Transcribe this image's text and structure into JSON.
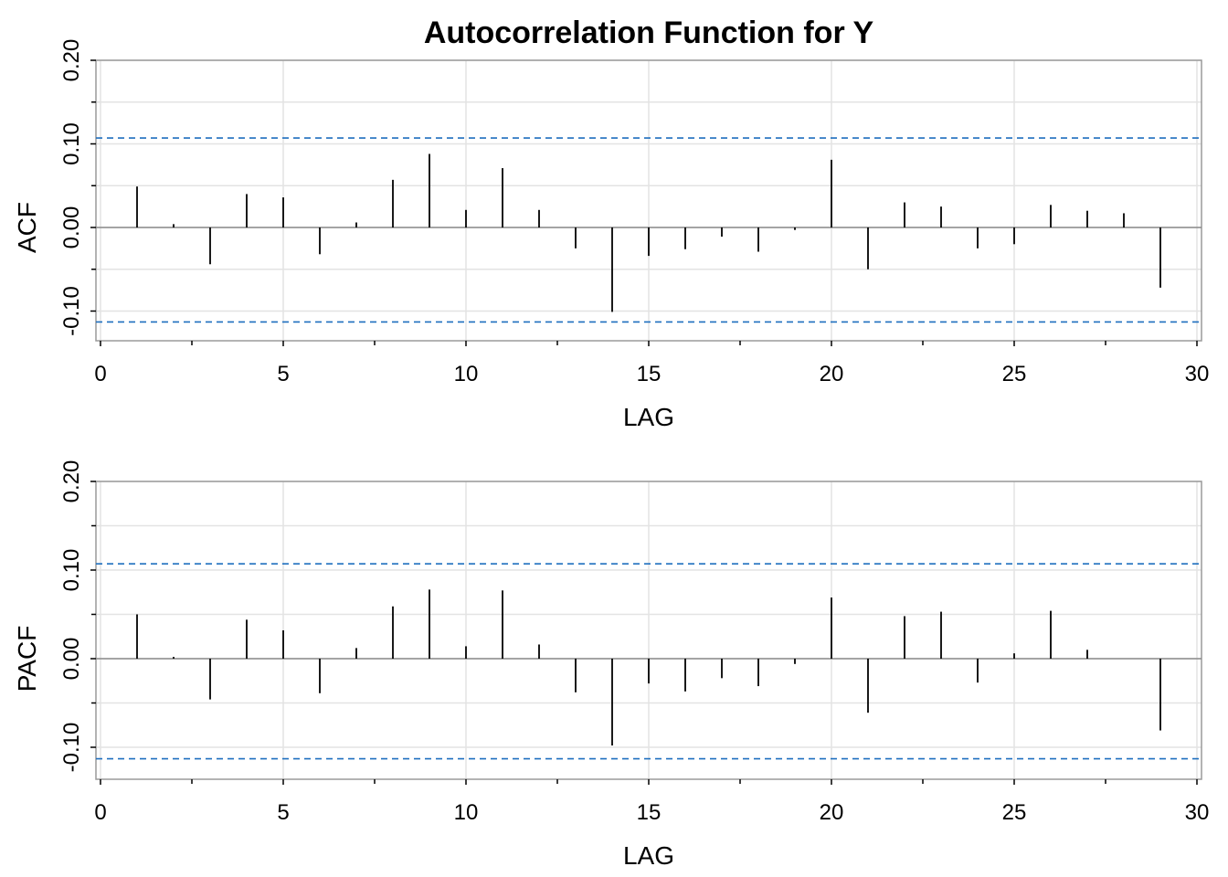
{
  "title": "Autocorrelation Function for Y",
  "colors": {
    "bars": "#000000",
    "confidence_band": "#1f6fbf",
    "grid": "#e3e3e3",
    "frame": "#9a9a9a"
  },
  "chart_data": [
    {
      "type": "bar",
      "panel": "acf",
      "xlabel": "LAG",
      "ylabel": "ACF",
      "xlim": [
        0,
        30
      ],
      "ylim": [
        -0.135,
        0.2
      ],
      "x_ticks": [
        "0",
        "5",
        "10",
        "15",
        "20",
        "25",
        "30"
      ],
      "y_ticks": [
        "-0.10",
        "0.00",
        "0.10",
        "0.20"
      ],
      "grid": true,
      "confidence_bounds": [
        0.107,
        -0.113
      ],
      "lags": [
        1,
        2,
        3,
        4,
        5,
        6,
        7,
        8,
        9,
        10,
        11,
        12,
        13,
        14,
        15,
        16,
        17,
        18,
        19,
        20,
        21,
        22,
        23,
        24,
        25,
        26,
        27,
        28,
        29
      ],
      "values": [
        0.049,
        0.004,
        -0.044,
        0.04,
        0.036,
        -0.032,
        0.006,
        0.057,
        0.088,
        0.021,
        0.071,
        0.021,
        -0.025,
        -0.101,
        -0.034,
        -0.026,
        -0.011,
        -0.029,
        -0.003,
        0.081,
        -0.05,
        0.03,
        0.025,
        -0.025,
        -0.02,
        0.027,
        0.02,
        0.017,
        -0.072
      ]
    },
    {
      "type": "bar",
      "panel": "pacf",
      "xlabel": "LAG",
      "ylabel": "PACF",
      "xlim": [
        0,
        30
      ],
      "ylim": [
        -0.135,
        0.2
      ],
      "x_ticks": [
        "0",
        "5",
        "10",
        "15",
        "20",
        "25",
        "30"
      ],
      "y_ticks": [
        "-0.10",
        "0.00",
        "0.10",
        "0.20"
      ],
      "grid": true,
      "confidence_bounds": [
        0.107,
        -0.113
      ],
      "lags": [
        1,
        2,
        3,
        4,
        5,
        6,
        7,
        8,
        9,
        10,
        11,
        12,
        13,
        14,
        15,
        16,
        17,
        18,
        19,
        20,
        21,
        22,
        23,
        24,
        25,
        26,
        27,
        28,
        29
      ],
      "values": [
        0.05,
        0.002,
        -0.046,
        0.044,
        0.032,
        -0.039,
        0.012,
        0.059,
        0.078,
        0.014,
        0.077,
        0.016,
        -0.038,
        -0.098,
        -0.028,
        -0.037,
        -0.022,
        -0.031,
        -0.006,
        0.069,
        -0.061,
        0.048,
        0.053,
        -0.027,
        0.006,
        0.054,
        0.01,
        0.0,
        -0.081
      ]
    }
  ]
}
